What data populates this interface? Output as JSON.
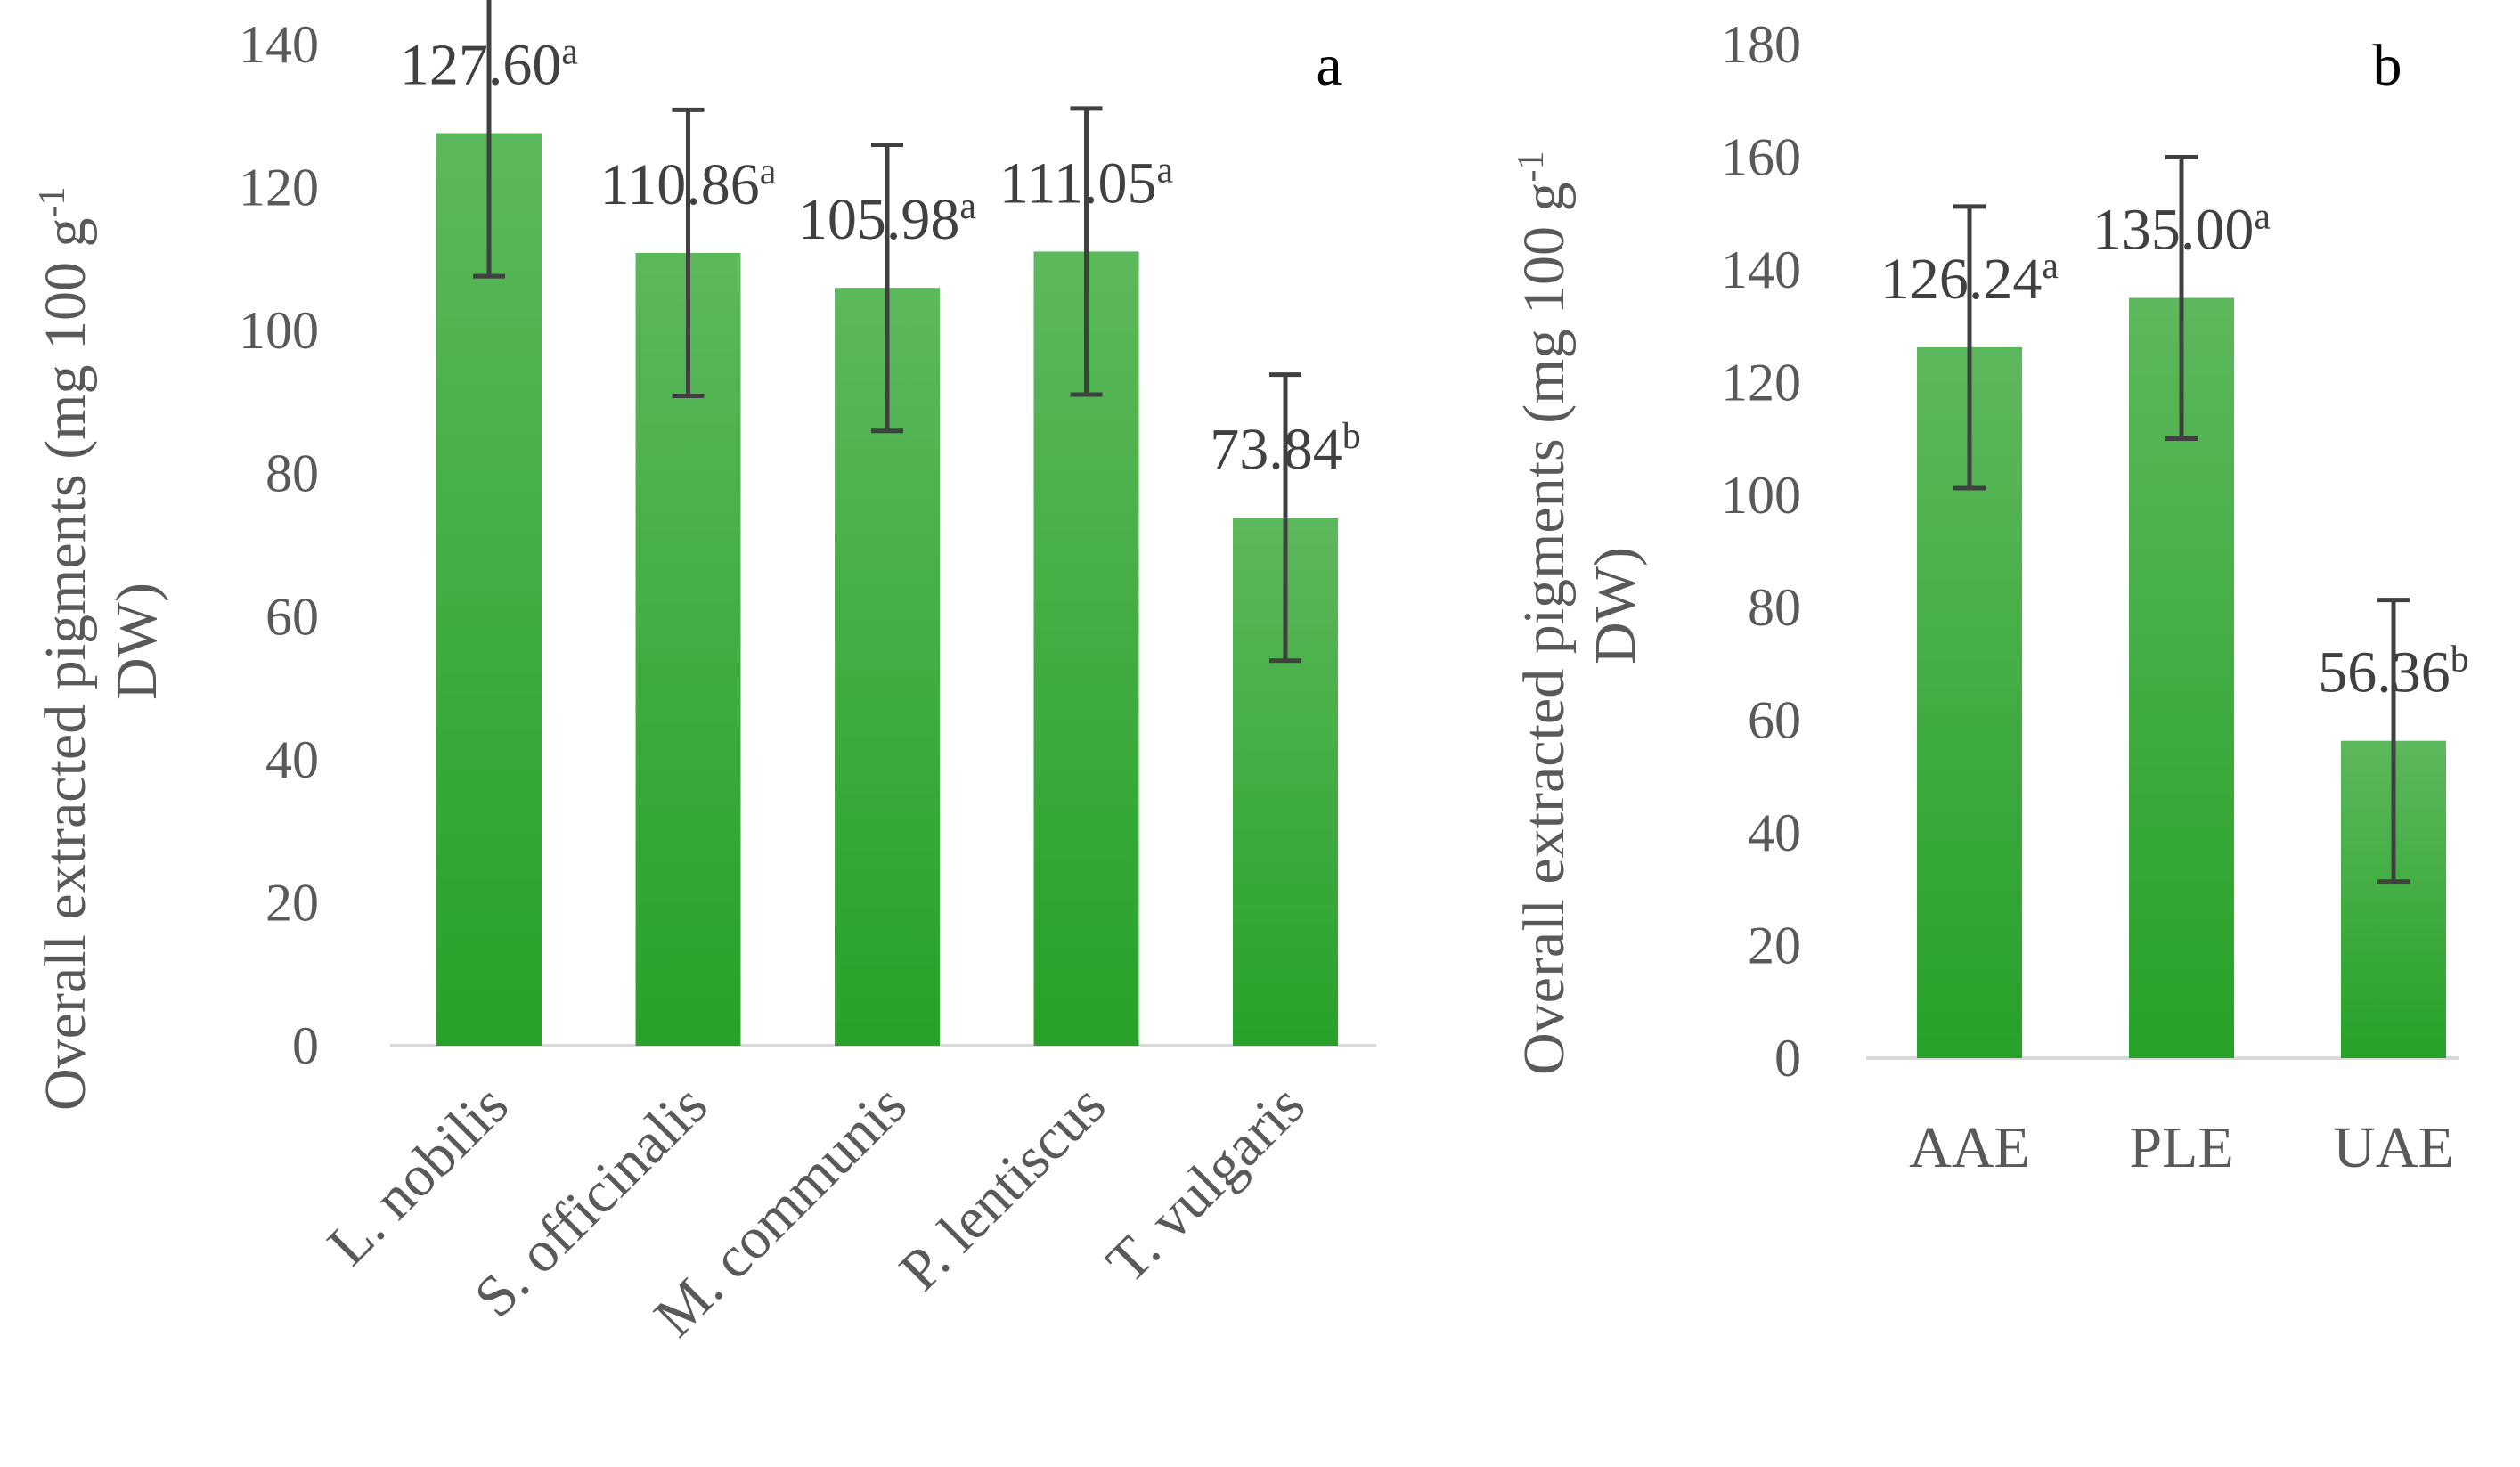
{
  "colors": {
    "bar_top": "#5cb85c",
    "bar_bottom": "#27a227",
    "axis": "#d9d9d9",
    "error": "#404040",
    "text": "#595959"
  },
  "chart_data": [
    {
      "type": "bar",
      "panel_label": "a",
      "title": "",
      "xlabel": "",
      "ylabel_line1": "Overall extracted pigments (mg 100 g",
      "ylabel_sup": "-1",
      "ylabel_line2": "DW)",
      "ylim": [
        0,
        140
      ],
      "ytick_step": 20,
      "yticks": [
        "0",
        "20",
        "40",
        "60",
        "80",
        "100",
        "120",
        "140"
      ],
      "categories": [
        "L. nobilis",
        "S. officinalis",
        "M. communis",
        "P. lentiscus",
        "T. vulgaris"
      ],
      "values": [
        127.6,
        110.86,
        105.98,
        111.05,
        73.84
      ],
      "errors": [
        20,
        20,
        20,
        20,
        20
      ],
      "value_labels": [
        "127.60",
        "110.86",
        "105.98",
        "111.05",
        "73.84"
      ],
      "letters": [
        "a",
        "a",
        "a",
        "a",
        "b"
      ]
    },
    {
      "type": "bar",
      "panel_label": "b",
      "title": "",
      "xlabel": "",
      "ylabel_line1": "Overall extracted pigments (mg 100 g",
      "ylabel_sup": "-1",
      "ylabel_line2": "DW)",
      "ylim": [
        0,
        180
      ],
      "ytick_step": 20,
      "yticks": [
        "0",
        "20",
        "40",
        "60",
        "80",
        "100",
        "120",
        "140",
        "160",
        "180"
      ],
      "categories": [
        "AAE",
        "PLE",
        "UAE"
      ],
      "values": [
        126.24,
        135.0,
        56.36
      ],
      "errors": [
        25,
        25,
        25
      ],
      "value_labels": [
        "126.24",
        "135.00",
        "56.36"
      ],
      "letters": [
        "a",
        "a",
        "b"
      ]
    }
  ]
}
